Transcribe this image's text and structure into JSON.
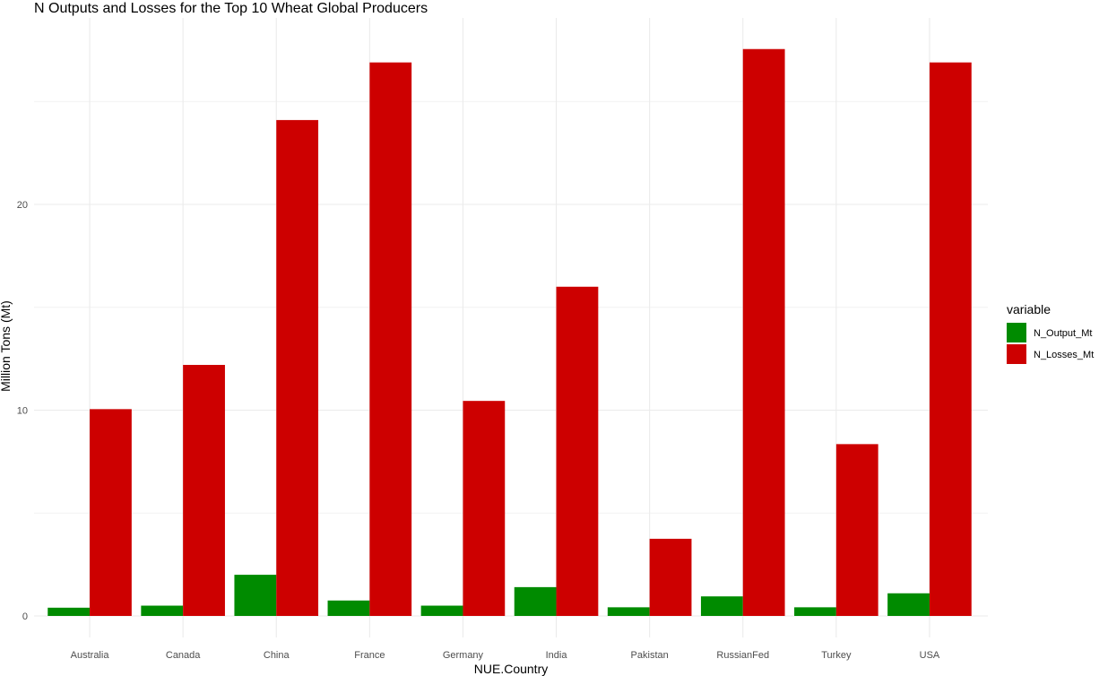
{
  "chart_data": {
    "type": "bar",
    "title": "N Outputs and Losses for the Top 10 Wheat Global Producers",
    "xlabel": "NUE.Country",
    "ylabel": "Million Tons (Mt)",
    "categories": [
      "Australia",
      "Canada",
      "China",
      "France",
      "Germany",
      "India",
      "Pakistan",
      "RussianFed",
      "Turkey",
      "USA"
    ],
    "series": [
      {
        "name": "N_Output_Mt",
        "color": "#008B00",
        "values": [
          0.4,
          0.5,
          2.0,
          0.75,
          0.5,
          1.4,
          0.42,
          0.95,
          0.42,
          1.1
        ]
      },
      {
        "name": "N_Losses_Mt",
        "color": "#CD0000",
        "values": [
          10.05,
          12.2,
          24.1,
          26.9,
          10.45,
          16.0,
          3.75,
          27.55,
          8.35,
          26.9
        ]
      }
    ],
    "ylim": [
      0,
      28.6
    ],
    "yticks": [
      0,
      10,
      20
    ],
    "grid": true,
    "legend": {
      "title": "variable",
      "position": "right"
    }
  }
}
